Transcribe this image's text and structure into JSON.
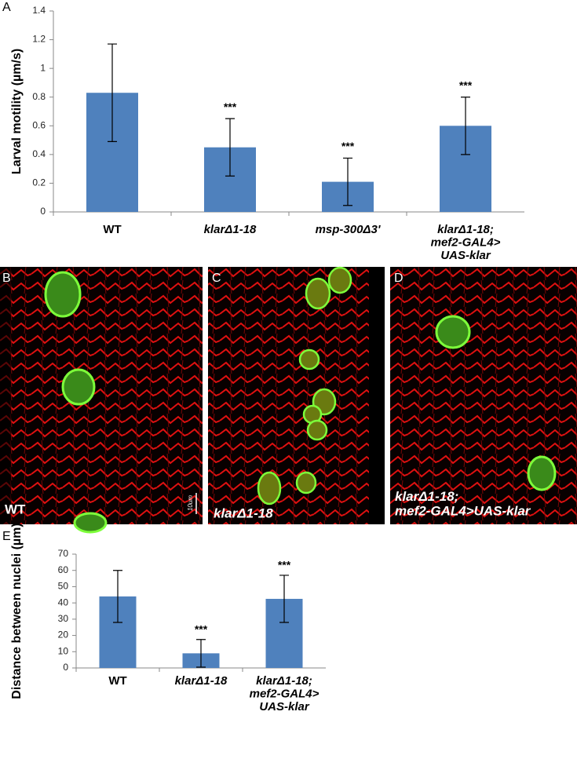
{
  "chart_data": [
    {
      "type": "bar",
      "panel": "A",
      "y_label": "Larval motility (µm/s)",
      "categories": [
        "WT",
        "klarΔ1-18",
        "msp-300Δ3'",
        "klarΔ1-18;\nmef2-GAL4>\nUAS-klar"
      ],
      "values": [
        0.83,
        0.45,
        0.21,
        0.6
      ],
      "errors": [
        0.34,
        0.2,
        0.165,
        0.2
      ],
      "color": "#4f81bd",
      "annotations": [
        {
          "index": 1,
          "text": "***"
        },
        {
          "index": 2,
          "text": "***"
        },
        {
          "index": 3,
          "text": "***"
        }
      ],
      "ylim": [
        0,
        1.4
      ],
      "yticks": [
        0,
        0.2,
        0.4,
        0.6,
        0.8,
        1,
        1.2,
        1.4
      ]
    },
    {
      "type": "bar",
      "panel": "E",
      "y_label": "Distance between nuclei (µm)",
      "categories": [
        "WT",
        "klarΔ1-18",
        "klarΔ1-18;\nmef2-GAL4>\nUAS-klar"
      ],
      "values": [
        44,
        9,
        42.5
      ],
      "errors": [
        16,
        8.5,
        14.5
      ],
      "color": "#4f81bd",
      "annotations": [
        {
          "index": 1,
          "text": "***"
        },
        {
          "index": 2,
          "text": "***"
        }
      ],
      "ylim": [
        0,
        70
      ],
      "yticks": [
        0,
        10,
        20,
        30,
        40,
        50,
        60,
        70
      ]
    }
  ],
  "images": [
    {
      "panel": "B",
      "caption": "WT",
      "scale_bar": "10um"
    },
    {
      "panel": "C",
      "caption": "klarΔ1-18"
    },
    {
      "panel": "D",
      "caption": "klarΔ1-18;\nmef2-GAL4>UAS-klar"
    }
  ]
}
